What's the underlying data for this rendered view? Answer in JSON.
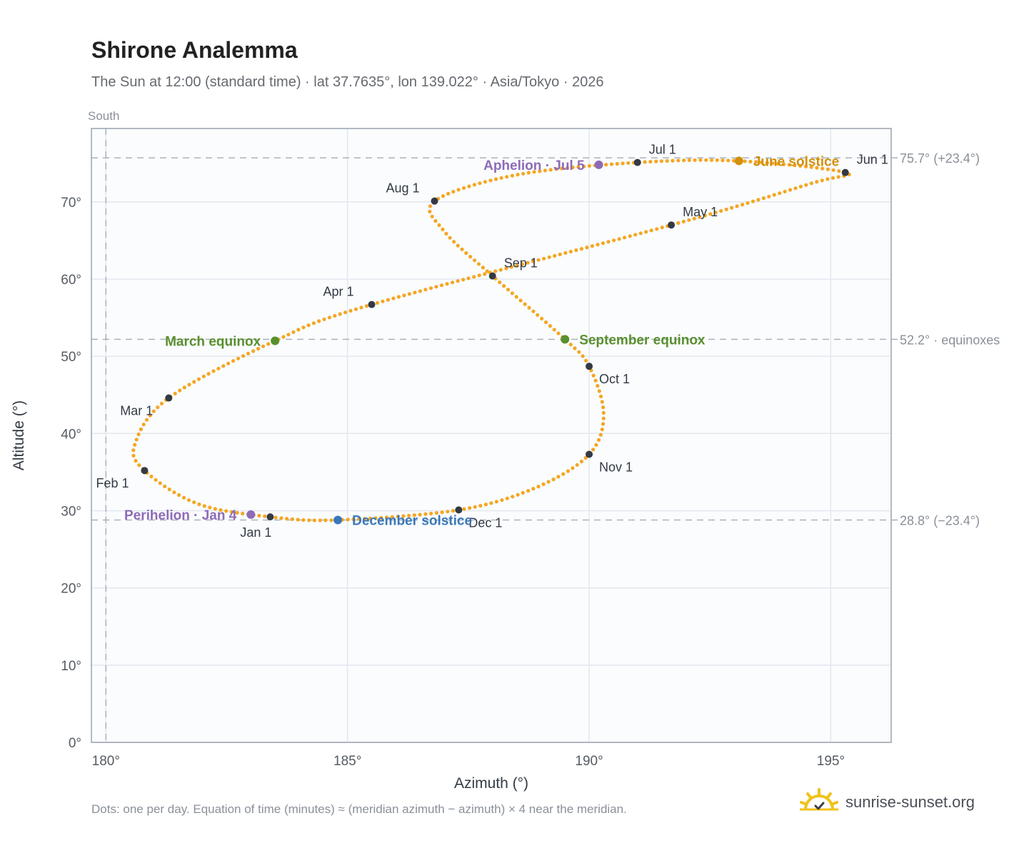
{
  "title": "Shirone Analemma",
  "subtitle": "The Sun at 12:00 (standard time) · lat 37.7635°, lon 139.022° · Asia/Tokyo · 2026",
  "footnote": "Dots: one per day. Equation of time (minutes) ≈ (meridian azimuth − azimuth) × 4 near the meridian.",
  "brand": "sunrise-sunset.org",
  "colors": {
    "path": "#f5a623",
    "month_marker": "#333a44",
    "equinox": "#5a8f2e",
    "solstice_june": "#d4900a",
    "solstice_december": "#3a78b8",
    "apsis": "#8e6bb8",
    "reference_line": "#aab2bd",
    "axis": "#6b7480",
    "grid": "#e3e8ee",
    "plot_bg": "#fafcfe"
  },
  "chart_data": {
    "type": "scatter",
    "title": "Shirone Analemma",
    "xlabel": "Azimuth (°)",
    "ylabel": "Altitude (°)",
    "xlim": [
      179.7,
      196.25
    ],
    "ylim": [
      0,
      79.5
    ],
    "xticks": [
      180,
      185,
      190,
      195
    ],
    "xtick_labels": [
      "180°",
      "185°",
      "190°",
      "195°"
    ],
    "yticks": [
      0,
      10,
      20,
      30,
      40,
      50,
      60,
      70
    ],
    "ytick_labels": [
      "0°",
      "10°",
      "20°",
      "30°",
      "40°",
      "50°",
      "60°",
      "70°"
    ],
    "grid": true,
    "meridian_azimuth": 180,
    "meridian_label": "South",
    "reference_lines": [
      {
        "altitude": 75.7,
        "label": "75.7° (+23.4°)"
      },
      {
        "altitude": 52.2,
        "label": "52.2° · equinoxes"
      },
      {
        "altitude": 28.8,
        "label": "28.8° (−23.4°)"
      }
    ],
    "daily_path_anchors": [
      {
        "date": "Jan 1",
        "az": 183.4,
        "alt": 29.2
      },
      {
        "date": "Jan 15",
        "az": 181.9,
        "alt": 30.9
      },
      {
        "date": "Feb 1",
        "az": 180.8,
        "alt": 35.2
      },
      {
        "date": "Feb 12",
        "az": 180.6,
        "alt": 38.6
      },
      {
        "date": "Mar 1",
        "az": 181.3,
        "alt": 44.6
      },
      {
        "date": "Mar 20",
        "az": 183.5,
        "alt": 52.0
      },
      {
        "date": "Apr 1",
        "az": 185.5,
        "alt": 56.7
      },
      {
        "date": "May 1",
        "az": 191.7,
        "alt": 67.0
      },
      {
        "date": "May 21",
        "az": 194.6,
        "alt": 72.4
      },
      {
        "date": "Jun 1",
        "az": 195.3,
        "alt": 73.8
      },
      {
        "date": "Jun 21",
        "az": 193.1,
        "alt": 75.3
      },
      {
        "date": "Jul 1",
        "az": 191.0,
        "alt": 75.1
      },
      {
        "date": "Jul 15",
        "az": 188.5,
        "alt": 73.5
      },
      {
        "date": "Aug 1",
        "az": 186.8,
        "alt": 70.1
      },
      {
        "date": "Aug 15",
        "az": 187.0,
        "alt": 66.2
      },
      {
        "date": "Sep 1",
        "az": 188.0,
        "alt": 60.4
      },
      {
        "date": "Sep 23",
        "az": 189.5,
        "alt": 52.2
      },
      {
        "date": "Oct 1",
        "az": 190.0,
        "alt": 48.7
      },
      {
        "date": "Oct 18",
        "az": 190.3,
        "alt": 42.5
      },
      {
        "date": "Nov 1",
        "az": 190.0,
        "alt": 37.3
      },
      {
        "date": "Nov 15",
        "az": 188.9,
        "alt": 33.0
      },
      {
        "date": "Dec 1",
        "az": 187.3,
        "alt": 30.1
      },
      {
        "date": "Dec 21",
        "az": 184.8,
        "alt": 28.8
      },
      {
        "date": "Jan 1",
        "az": 183.4,
        "alt": 29.2
      }
    ],
    "month_markers": [
      {
        "label": "Jan 1",
        "az": 183.4,
        "alt": 29.2,
        "pos": "below"
      },
      {
        "label": "Feb 1",
        "az": 180.8,
        "alt": 35.2,
        "pos": "below-left"
      },
      {
        "label": "Mar 1",
        "az": 181.3,
        "alt": 44.6,
        "pos": "below-left"
      },
      {
        "label": "Apr 1",
        "az": 185.5,
        "alt": 56.7,
        "pos": "above-left"
      },
      {
        "label": "May 1",
        "az": 191.7,
        "alt": 67.0,
        "pos": "above-right"
      },
      {
        "label": "Jun 1",
        "az": 195.3,
        "alt": 73.8,
        "pos": "above-right"
      },
      {
        "label": "Jul 1",
        "az": 191.0,
        "alt": 75.1,
        "pos": "above-right"
      },
      {
        "label": "Aug 1",
        "az": 186.8,
        "alt": 70.1,
        "pos": "above-left"
      },
      {
        "label": "Sep 1",
        "az": 188.0,
        "alt": 60.4,
        "pos": "above-right"
      },
      {
        "label": "Oct 1",
        "az": 190.0,
        "alt": 48.7,
        "pos": "below-right"
      },
      {
        "label": "Nov 1",
        "az": 190.0,
        "alt": 37.3,
        "pos": "below-right"
      },
      {
        "label": "Dec 1",
        "az": 187.3,
        "alt": 30.1,
        "pos": "below-right"
      }
    ],
    "events": [
      {
        "label": "March equinox",
        "az": 183.5,
        "alt": 52.0,
        "color_key": "equinox",
        "pos": "left"
      },
      {
        "label": "June solstice",
        "az": 193.1,
        "alt": 75.3,
        "color_key": "solstice_june",
        "pos": "right"
      },
      {
        "label": "September equinox",
        "az": 189.5,
        "alt": 52.2,
        "color_key": "equinox",
        "pos": "right"
      },
      {
        "label": "December solstice",
        "az": 184.8,
        "alt": 28.8,
        "color_key": "solstice_december",
        "pos": "right"
      },
      {
        "label": "Perihelion · Jan 4",
        "az": 183.0,
        "alt": 29.5,
        "color_key": "apsis",
        "pos": "left"
      },
      {
        "label": "Aphelion · Jul 5",
        "az": 190.2,
        "alt": 74.8,
        "color_key": "apsis",
        "pos": "left"
      }
    ]
  }
}
